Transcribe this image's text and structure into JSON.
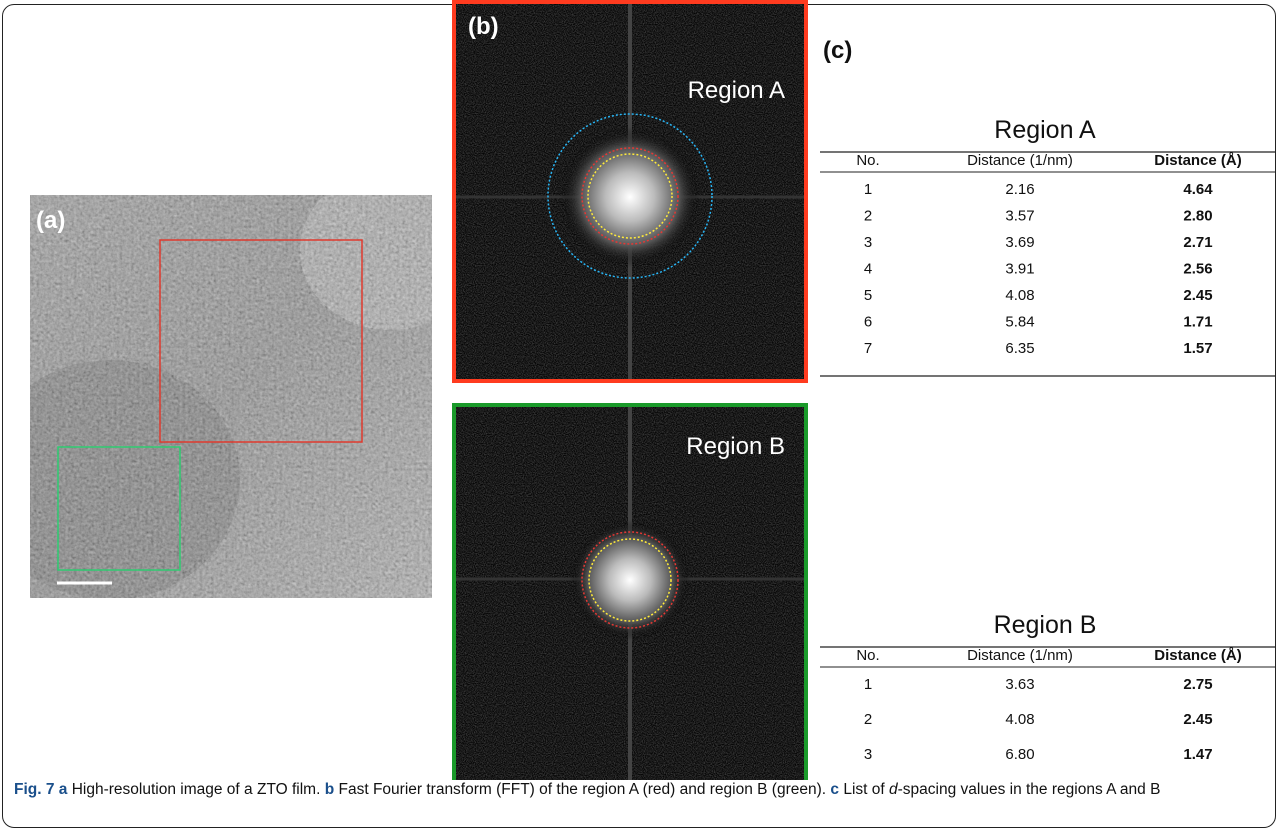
{
  "panels": {
    "a": {
      "label": "(a)"
    },
    "b": {
      "label": "(b)",
      "region_a": "Region A",
      "region_b": "Region B"
    },
    "c": {
      "label": "(c)"
    }
  },
  "tables": [
    {
      "title": "Region A",
      "headers": [
        "No.",
        "Distance (1/nm)",
        "Distance (Å)"
      ],
      "rows": [
        [
          "1",
          "2.16",
          "4.64"
        ],
        [
          "2",
          "3.57",
          "2.80"
        ],
        [
          "3",
          "3.69",
          "2.71"
        ],
        [
          "4",
          "3.91",
          "2.56"
        ],
        [
          "5",
          "4.08",
          "2.45"
        ],
        [
          "6",
          "5.84",
          "1.71"
        ],
        [
          "7",
          "6.35",
          "1.57"
        ]
      ]
    },
    {
      "title": "Region B",
      "headers": [
        "No.",
        "Distance (1/nm)",
        "Distance (Å)"
      ],
      "rows": [
        [
          "1",
          "3.63",
          "2.75"
        ],
        [
          "2",
          "4.08",
          "2.45"
        ],
        [
          "3",
          "6.80",
          "1.47"
        ]
      ]
    }
  ],
  "caption": {
    "label": "Fig. 7",
    "items": [
      {
        "marker": "a",
        "text": "High-resolution image of a ZTO film."
      },
      {
        "marker": "b",
        "text": "Fast Fourier transform (FFT) of the region A (red) and region B (green)."
      },
      {
        "marker": "c",
        "before": "List of",
        "italic": "d",
        "after": "-spacing values in the regions A and B"
      }
    ]
  }
}
